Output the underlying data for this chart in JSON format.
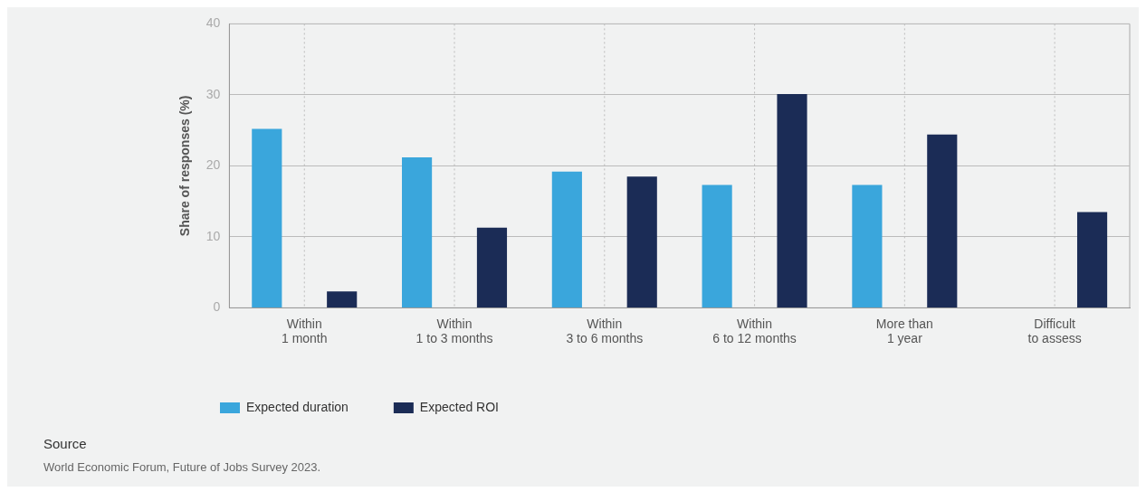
{
  "chart_data": {
    "type": "bar",
    "ylabel": "Share of responses (%)",
    "categories": [
      "Within\n1 month",
      "Within\n1 to 3 months",
      "Within\n3 to 6 months",
      "Within\n6 to 12 months",
      "More than\n1 year",
      "Difficult\nto assess"
    ],
    "series": [
      {
        "name": "Expected duration",
        "color": "#3aa6dc",
        "values": [
          25.2,
          21.2,
          19.2,
          17.3,
          17.3,
          null
        ]
      },
      {
        "name": "Expected ROI",
        "color": "#1b2c56",
        "values": [
          2.3,
          11.3,
          18.5,
          30.1,
          24.4,
          13.5
        ]
      }
    ],
    "ylim": [
      0,
      40
    ],
    "yticks": [
      0,
      10,
      20,
      30,
      40
    ],
    "grid": true,
    "legend": "bottom left",
    "annotations": [
      "Source",
      "World Economic Forum, Future of Jobs Survey 2023."
    ]
  }
}
